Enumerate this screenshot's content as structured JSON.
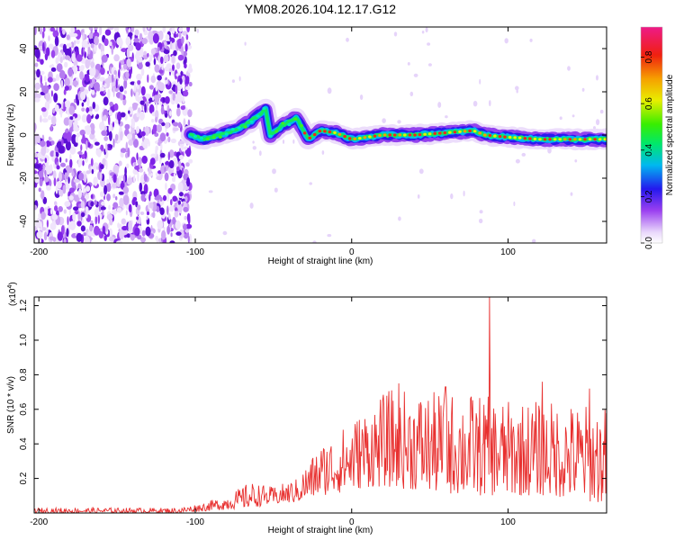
{
  "title": "YM08.2026.104.12.17.G12",
  "chart_data": [
    {
      "type": "heatmap",
      "name": "spectrogram",
      "xlabel": "Height of straight line (km)",
      "ylabel": "Frequency (Hz)",
      "xlim": [
        -203,
        163
      ],
      "ylim": [
        -50,
        50
      ],
      "xticks": [
        -200,
        -100,
        0,
        100
      ],
      "yticks": [
        -40,
        -20,
        0,
        20,
        40
      ],
      "xtick_labels": [
        "-200",
        "-100",
        "0",
        "100"
      ],
      "ytick_labels": [
        "-40",
        "-20",
        "0",
        "20",
        "40"
      ],
      "noise_region_x": [
        -203,
        -103
      ],
      "signal_track": [
        {
          "x": -103,
          "freq": 0
        },
        {
          "x": -95,
          "freq": -2
        },
        {
          "x": -85,
          "freq": 0
        },
        {
          "x": -75,
          "freq": 2
        },
        {
          "x": -65,
          "freq": 6
        },
        {
          "x": -55,
          "freq": 12
        },
        {
          "x": -52,
          "freq": 0
        },
        {
          "x": -45,
          "freq": 4
        },
        {
          "x": -35,
          "freq": 8
        },
        {
          "x": -28,
          "freq": -2
        },
        {
          "x": -20,
          "freq": 2
        },
        {
          "x": -10,
          "freq": 1
        },
        {
          "x": 0,
          "freq": -2
        },
        {
          "x": 20,
          "freq": 0
        },
        {
          "x": 40,
          "freq": 0
        },
        {
          "x": 60,
          "freq": 1
        },
        {
          "x": 78,
          "freq": 2
        },
        {
          "x": 85,
          "freq": 0
        },
        {
          "x": 100,
          "freq": -1
        },
        {
          "x": 120,
          "freq": -2
        },
        {
          "x": 140,
          "freq": -2
        },
        {
          "x": 163,
          "freq": -2
        }
      ],
      "colorbar": {
        "label": "Normalized spectral amplitude",
        "range": [
          0,
          0.93
        ],
        "ticks": [
          0.0,
          0.2,
          0.4,
          0.6,
          0.8
        ],
        "tick_labels": [
          "0.0",
          "0.2",
          "0.4",
          "0.6",
          "0.8"
        ]
      }
    },
    {
      "type": "line",
      "name": "snr",
      "xlabel": "Height of straight line (km)",
      "ylabel": "SNR (10 * v/v)",
      "scale_label_base": "(x10",
      "scale_label_exp": "4",
      "scale_label_close": ")",
      "xlim": [
        -203,
        163
      ],
      "ylim": [
        0,
        1.25
      ],
      "xticks": [
        -200,
        -100,
        0,
        100
      ],
      "yticks": [
        0.2,
        0.4,
        0.6,
        0.8,
        1.0,
        1.2
      ],
      "xtick_labels": [
        "-200",
        "-100",
        "0",
        "100"
      ],
      "ytick_labels": [
        "0.2",
        "0.4",
        "0.6",
        "0.8",
        "1.0",
        "1.2"
      ],
      "color": "#e8302f",
      "envelope": [
        {
          "x": -203,
          "low": 0.0,
          "high": 0.03
        },
        {
          "x": -110,
          "low": 0.0,
          "high": 0.03
        },
        {
          "x": -95,
          "low": 0.01,
          "high": 0.06
        },
        {
          "x": -80,
          "low": 0.02,
          "high": 0.1
        },
        {
          "x": -65,
          "low": 0.03,
          "high": 0.18
        },
        {
          "x": -50,
          "low": 0.05,
          "high": 0.15
        },
        {
          "x": -35,
          "low": 0.06,
          "high": 0.2
        },
        {
          "x": -20,
          "low": 0.1,
          "high": 0.4
        },
        {
          "x": -5,
          "low": 0.12,
          "high": 0.5
        },
        {
          "x": 10,
          "low": 0.15,
          "high": 0.62
        },
        {
          "x": 25,
          "low": 0.15,
          "high": 0.72
        },
        {
          "x": 50,
          "low": 0.12,
          "high": 0.7
        },
        {
          "x": 75,
          "low": 0.1,
          "high": 0.7
        },
        {
          "x": 100,
          "low": 0.1,
          "high": 0.65
        },
        {
          "x": 125,
          "low": 0.1,
          "high": 0.65
        },
        {
          "x": 163,
          "low": 0.05,
          "high": 0.62
        }
      ],
      "peaks": [
        {
          "x": 88,
          "value": 1.25
        },
        {
          "x": 122,
          "value": 0.76
        },
        {
          "x": 152,
          "value": 0.72
        },
        {
          "x": 30,
          "value": 0.75
        },
        {
          "x": 60,
          "value": 0.73
        }
      ]
    }
  ]
}
